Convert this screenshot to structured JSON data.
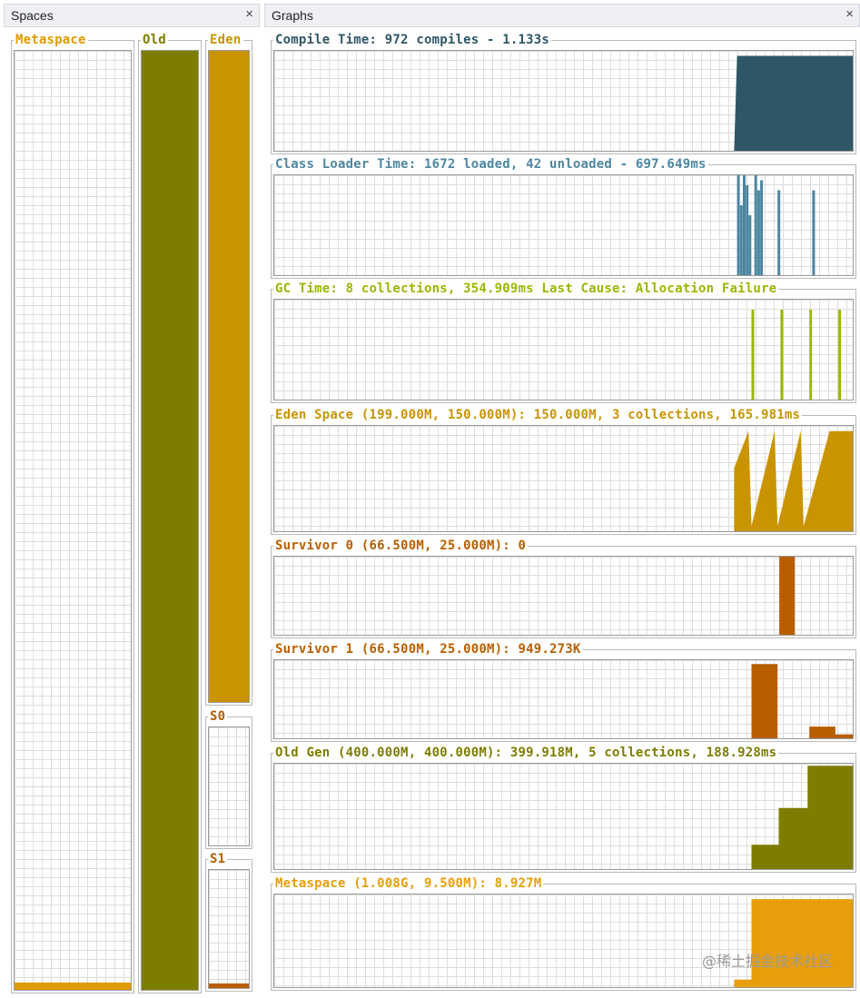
{
  "spaces_panel": {
    "title": "Spaces",
    "close": "×"
  },
  "graphs_panel": {
    "title": "Graphs",
    "close": "×"
  },
  "spaces": [
    {
      "key": "metaspace",
      "label": "Metaspace",
      "color": "#e09a00",
      "usage": 0.008
    },
    {
      "key": "old",
      "label": "Old",
      "color": "#7d7d00",
      "usage": 1.0
    },
    {
      "key": "eden",
      "label": "Eden",
      "color": "#c99400",
      "usage": 1.0
    },
    {
      "key": "s0",
      "label": "S0",
      "color": "#b85e00",
      "usage": 0.0
    },
    {
      "key": "s1",
      "label": "S1",
      "color": "#b85e00",
      "usage": 0.04
    }
  ],
  "graphs": [
    {
      "key": "compile",
      "label": "Compile Time: 972 compiles - 1.133s",
      "color": "#2f5666",
      "kind": "fill",
      "points": [
        [
          0.795,
          0
        ],
        [
          0.8,
          0.95
        ],
        [
          1,
          0.95
        ],
        [
          1,
          0
        ]
      ]
    },
    {
      "key": "classloader",
      "label": "Class Loader Time: 1672 loaded, 42 unloaded - 697.649ms",
      "color": "#4d86a0",
      "kind": "spikes",
      "points": [
        [
          0.8,
          1
        ],
        [
          0.805,
          0.7
        ],
        [
          0.81,
          1
        ],
        [
          0.815,
          0.9
        ],
        [
          0.82,
          0.6
        ],
        [
          0.83,
          1
        ],
        [
          0.835,
          0.85
        ],
        [
          0.84,
          0.95
        ],
        [
          0.87,
          0.85
        ],
        [
          0.93,
          0.85
        ]
      ]
    },
    {
      "key": "gc",
      "label": "GC Time: 8 collections, 354.909ms Last Cause: Allocation Failure",
      "color": "#98b800",
      "kind": "spikes",
      "points": [
        [
          0.825,
          0.9
        ],
        [
          0.875,
          0.9
        ],
        [
          0.925,
          0.9
        ],
        [
          0.975,
          0.9
        ]
      ]
    },
    {
      "key": "eden",
      "label": "Eden Space (199.000M, 150.000M): 150.000M, 3 collections, 165.981ms",
      "color": "#c99400",
      "kind": "fill",
      "points": [
        [
          0.795,
          0
        ],
        [
          0.795,
          0.6
        ],
        [
          0.82,
          0.95
        ],
        [
          0.825,
          0.05
        ],
        [
          0.865,
          0.95
        ],
        [
          0.87,
          0.05
        ],
        [
          0.91,
          0.95
        ],
        [
          0.915,
          0.05
        ],
        [
          0.96,
          0.95
        ],
        [
          1,
          0.95
        ],
        [
          1,
          0
        ]
      ]
    },
    {
      "key": "s0",
      "label": "Survivor 0 (66.500M, 25.000M): 0",
      "color": "#b85e00",
      "kind": "fill",
      "points": [
        [
          0.873,
          0
        ],
        [
          0.873,
          1.0
        ],
        [
          0.9,
          1.0
        ],
        [
          0.9,
          0
        ]
      ]
    },
    {
      "key": "s1",
      "label": "Survivor 1 (66.500M, 25.000M): 949.273K",
      "color": "#b85e00",
      "kind": "fill",
      "points": [
        [
          0.825,
          0
        ],
        [
          0.825,
          0.95
        ],
        [
          0.87,
          0.95
        ],
        [
          0.87,
          0
        ],
        [
          0.925,
          0
        ],
        [
          0.925,
          0.15
        ],
        [
          0.97,
          0.15
        ],
        [
          0.97,
          0.05
        ],
        [
          1,
          0.05
        ],
        [
          1,
          0
        ]
      ]
    },
    {
      "key": "oldgen",
      "label": "Old Gen (400.000M, 400.000M): 399.918M, 5 collections, 188.928ms",
      "color": "#7d7d00",
      "kind": "fill",
      "points": [
        [
          0.825,
          0
        ],
        [
          0.825,
          0.23
        ],
        [
          0.872,
          0.23
        ],
        [
          0.872,
          0.58
        ],
        [
          0.922,
          0.58
        ],
        [
          0.922,
          0.98
        ],
        [
          1,
          0.98
        ],
        [
          1,
          0
        ]
      ]
    },
    {
      "key": "metaspace",
      "label": "Metaspace (1.008G, 9.500M): 8.927M",
      "color": "#e89e0a",
      "kind": "fill",
      "points": [
        [
          0.795,
          0
        ],
        [
          0.795,
          0.08
        ],
        [
          0.825,
          0.08
        ],
        [
          0.825,
          0.95
        ],
        [
          1,
          0.95
        ],
        [
          1,
          0
        ]
      ]
    }
  ],
  "watermark": "@稀土掘金技术社区"
}
